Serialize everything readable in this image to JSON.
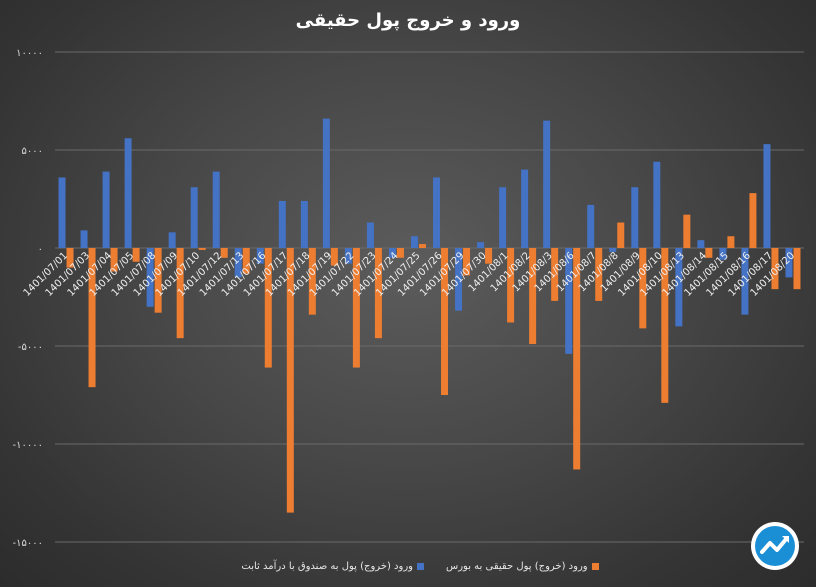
{
  "colors": {
    "series_1": "#4472c4",
    "series_2": "#ed7d31",
    "background": "#3f3f3f",
    "gridline": "#6a6a6a",
    "text": "#d9d9d9"
  },
  "logo": {
    "icon": "trend-arrow-logo",
    "fill": "#1b8fd6"
  },
  "chart_data": {
    "type": "bar",
    "title": "ورود و خروج پول حقیقی",
    "xlabel": "",
    "ylabel": "",
    "ylim": [
      -15000,
      10000
    ],
    "y_ticks": [
      10000,
      5000,
      0,
      -5000,
      -10000,
      -15000
    ],
    "y_tick_labels": [
      "۱۰۰۰۰",
      "۵۰۰۰",
      "۰",
      "-۵۰۰۰",
      "-۱۰۰۰۰",
      "-۱۵۰۰۰"
    ],
    "grid": true,
    "legend_position": "bottom",
    "categories": [
      "1401/07/01",
      "1401/07/03",
      "1401/07/04",
      "1401/07/05",
      "1401/07/08",
      "1401/07/09",
      "1401/07/10",
      "1401/07/12",
      "1401/07/13",
      "1401/07/16",
      "1401/07/17",
      "1401/07/18",
      "1401/07/19",
      "1401/07/22",
      "1401/07/23",
      "1401/07/24",
      "1401/07/25",
      "1401/07/26",
      "1401/07/29",
      "1401/07/30",
      "1401/08/1",
      "1401/08/2",
      "1401/08/3",
      "1401/08/6",
      "1401/08/7",
      "1401/08/8",
      "1401/08/9",
      "1401/08/10",
      "1401/08/13",
      "1401/08/14",
      "1401/08/15",
      "1401/08/16",
      "1401/08/17",
      "1401/08/20"
    ],
    "series": [
      {
        "name": "ورود (خروج) پول به صندوق با درآمد ثابت",
        "values": [
          3600,
          900,
          3900,
          5600,
          -3000,
          800,
          3100,
          3900,
          -1500,
          -800,
          2400,
          2400,
          6600,
          -800,
          1300,
          -500,
          600,
          3600,
          -3200,
          300,
          3100,
          4000,
          6500,
          -5400,
          2200,
          -200,
          3100,
          4400,
          -4000,
          400,
          -600,
          -3400,
          5300,
          -1500
        ]
      },
      {
        "name": "ورود (خروج) پول حقیقی به بورس",
        "values": [
          -1000,
          -7100,
          -1200,
          -700,
          -3300,
          -4600,
          -100,
          -500,
          -1300,
          -6100,
          -13500,
          -3400,
          -900,
          -6100,
          -4600,
          -500,
          200,
          -7500,
          -1400,
          -800,
          -3800,
          -4900,
          -2700,
          -11300,
          -2700,
          1300,
          -4100,
          -7900,
          1700,
          -500,
          600,
          2800,
          -2100,
          -2100
        ]
      }
    ]
  }
}
